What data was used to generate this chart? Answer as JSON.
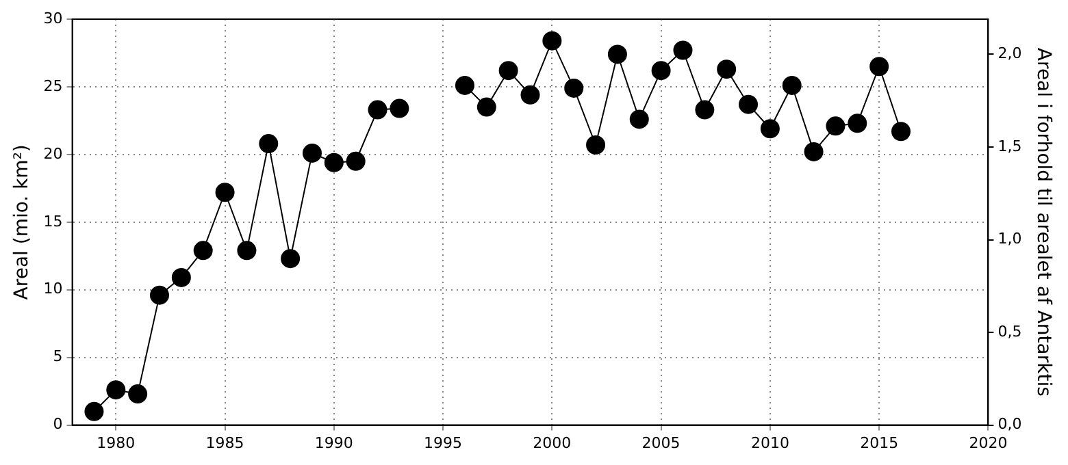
{
  "chart_data": {
    "type": "line",
    "ylabel": "Areal (mio. km²)",
    "y2label": "Areal i forhold til arealet af Antarktis",
    "x": [
      1979,
      1980,
      1981,
      1982,
      1983,
      1984,
      1985,
      1986,
      1987,
      1988,
      1989,
      1990,
      1991,
      1992,
      1993,
      1994,
      1995,
      1996,
      1997,
      1998,
      1999,
      2000,
      2001,
      2002,
      2003,
      2004,
      2005,
      2006,
      2007,
      2008,
      2009,
      2010,
      2011,
      2012,
      2013,
      2014,
      2015,
      2016
    ],
    "series": [
      {
        "color": "#000000",
        "values": [
          1.0,
          2.6,
          2.3,
          9.6,
          10.9,
          12.9,
          17.2,
          12.9,
          20.8,
          12.3,
          20.1,
          19.4,
          19.5,
          23.3,
          23.4,
          null,
          null,
          25.1,
          23.5,
          26.2,
          24.4,
          28.4,
          24.9,
          20.7,
          27.4,
          22.6,
          26.2,
          27.7,
          23.3,
          26.3,
          23.7,
          21.9,
          25.1,
          20.2,
          22.1,
          22.3,
          26.5,
          21.7
        ]
      }
    ],
    "xlim": [
      1978,
      2020
    ],
    "xticks": [
      1980,
      1985,
      1990,
      1995,
      2000,
      2005,
      2010,
      2015,
      2020
    ],
    "ylim": [
      0,
      30
    ],
    "yticks": [
      0,
      5,
      10,
      15,
      20,
      25,
      30
    ],
    "y2lim": [
      0,
      2.19
    ],
    "y2ticks": [
      {
        "value": 0,
        "label": "0,0"
      },
      {
        "value": 0.5,
        "label": "0,5"
      },
      {
        "value": 1,
        "label": "1,0"
      },
      {
        "value": 1.5,
        "label": "1,5"
      },
      {
        "value": 2,
        "label": "2,0"
      }
    ],
    "grid": true,
    "legend": false,
    "marker": "circle",
    "line_style": "solid"
  }
}
